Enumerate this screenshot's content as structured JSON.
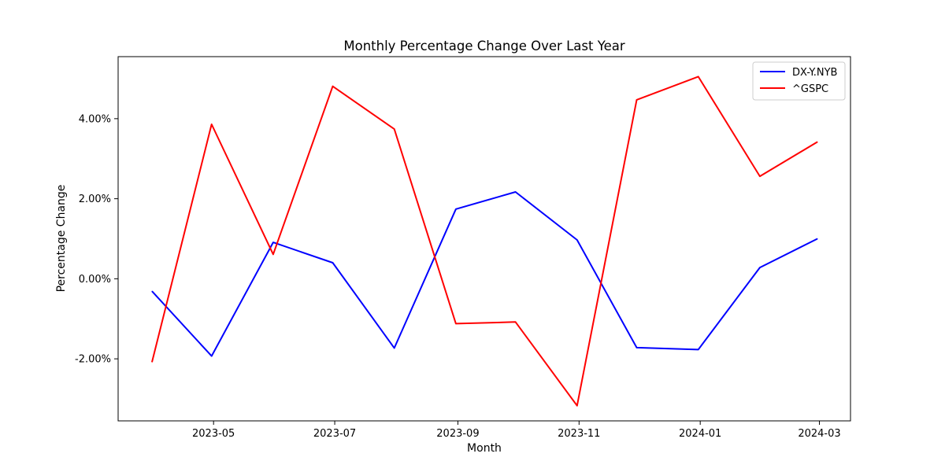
{
  "chart_data": {
    "type": "line",
    "title": "Monthly Percentage Change Over Last Year",
    "xlabel": "Month",
    "ylabel": "Percentage Change",
    "x": [
      "2023-03-31",
      "2023-04-30",
      "2023-05-31",
      "2023-06-30",
      "2023-07-31",
      "2023-08-31",
      "2023-09-30",
      "2023-10-31",
      "2023-11-30",
      "2023-12-31",
      "2024-01-31",
      "2024-02-29"
    ],
    "x_ticks": [
      "2023-05",
      "2023-07",
      "2023-09",
      "2023-11",
      "2024-01",
      "2024-03"
    ],
    "y_ticks": [
      "-2.00%",
      "0.00%",
      "2.00%",
      "4.00%"
    ],
    "ylim": [
      -3.55,
      5.55
    ],
    "grid": false,
    "legend_position": "top-right",
    "series": [
      {
        "name": "DX-Y.NYB",
        "color": "#0000ff",
        "values": [
          -0.31,
          -1.93,
          0.91,
          0.4,
          -1.73,
          1.74,
          2.17,
          0.97,
          -1.72,
          -1.77,
          0.28,
          1.0
        ]
      },
      {
        "name": "^GSPC",
        "color": "#ff0000",
        "values": [
          -2.08,
          3.86,
          0.61,
          4.81,
          3.74,
          -1.12,
          -1.08,
          -3.17,
          4.47,
          5.05,
          2.56,
          3.42
        ]
      }
    ]
  }
}
